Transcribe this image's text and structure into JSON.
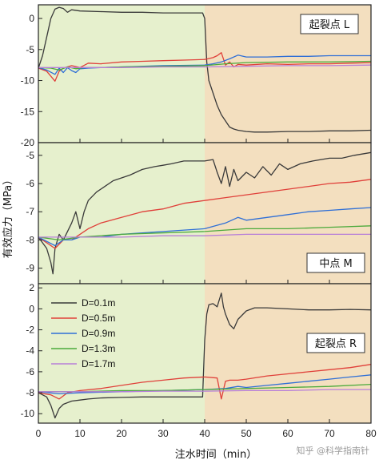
{
  "chart_data": {
    "type": "line",
    "xlabel": "注水时间（min）",
    "ylabel": "有效应力（MPa）",
    "xlim": [
      0,
      80
    ],
    "xticks": [
      0,
      10,
      20,
      30,
      40,
      50,
      60,
      70,
      80
    ],
    "shaded_regions": [
      {
        "x_range": [
          0,
          40
        ],
        "color": "#e6f0cd"
      },
      {
        "x_range": [
          40,
          80
        ],
        "color": "#f3dfbf"
      }
    ],
    "legend": {
      "placement": "top-left of bottom panel",
      "entries": [
        {
          "label": "D=0.1m",
          "color": "#3a3a3a"
        },
        {
          "label": "D=0.5m",
          "color": "#e0403a"
        },
        {
          "label": "D=0.9m",
          "color": "#2f6fd6"
        },
        {
          "label": "D=1.3m",
          "color": "#4caa3c"
        },
        {
          "label": "D=1.7m",
          "color": "#b77fd8"
        }
      ]
    },
    "panels": [
      {
        "label": "起裂点 L",
        "ylim": [
          -20,
          2.2
        ],
        "yticks": [
          0,
          -5,
          -10,
          -15,
          -20
        ],
        "series": [
          {
            "color": "#3a3a3a",
            "x": [
              0,
              1,
              2,
              3,
              4,
              5,
              6,
              7,
              8,
              10,
              15,
              20,
              25,
              30,
              35,
              39.5,
              40,
              40.5,
              41,
              42,
              43,
              44,
              45,
              46,
              47,
              48,
              50,
              52,
              55,
              60,
              65,
              70,
              75,
              80
            ],
            "y": [
              -8,
              -6,
              -3,
              0,
              1.5,
              1.8,
              1.6,
              1.0,
              1.4,
              1.2,
              1.1,
              1.0,
              1.0,
              0.9,
              0.9,
              0.9,
              0,
              -7,
              -10,
              -12,
              -14,
              -15.5,
              -16.5,
              -17.5,
              -17.8,
              -18,
              -18.2,
              -18.3,
              -18.3,
              -18.2,
              -18.2,
              -18.1,
              -18.1,
              -18.0
            ]
          },
          {
            "color": "#e0403a",
            "x": [
              0,
              2,
              3,
              4,
              5,
              6,
              8,
              10,
              12,
              15,
              20,
              25,
              30,
              35,
              40,
              42,
              43,
              44,
              45,
              46,
              47,
              48,
              50,
              55,
              60,
              65,
              70,
              75,
              80
            ],
            "y": [
              -8,
              -8.5,
              -9.3,
              -10.1,
              -8.5,
              -8.0,
              -7.6,
              -7.9,
              -7.2,
              -7.3,
              -7.0,
              -6.9,
              -6.8,
              -6.7,
              -6.6,
              -6.3,
              -6.0,
              -5.5,
              -7.5,
              -7.0,
              -7.8,
              -7.4,
              -7.5,
              -7.3,
              -7.4,
              -7.3,
              -7.3,
              -7.2,
              -7.1
            ]
          },
          {
            "color": "#2f6fd6",
            "x": [
              0,
              2,
              4,
              5,
              6,
              7,
              8,
              9,
              10,
              12,
              15,
              20,
              30,
              40,
              42,
              44,
              46,
              48,
              50,
              55,
              60,
              65,
              70,
              75,
              80
            ],
            "y": [
              -7.9,
              -8.3,
              -9.0,
              -8.0,
              -8.7,
              -7.9,
              -8.4,
              -8.7,
              -8.1,
              -8.0,
              -7.9,
              -7.8,
              -7.6,
              -7.5,
              -7.3,
              -7.0,
              -6.5,
              -5.9,
              -6.2,
              -6.2,
              -6.1,
              -6.1,
              -6.0,
              -6.0,
              -6.0
            ]
          },
          {
            "color": "#4caa3c",
            "x": [
              0,
              3,
              5,
              7,
              9,
              11,
              15,
              20,
              30,
              40,
              45,
              50,
              60,
              70,
              80
            ],
            "y": [
              -7.9,
              -8.0,
              -8.3,
              -7.8,
              -8.1,
              -7.9,
              -7.9,
              -7.8,
              -7.7,
              -7.6,
              -7.3,
              -7.1,
              -7.0,
              -7.0,
              -6.9
            ]
          },
          {
            "color": "#b77fd8",
            "x": [
              0,
              10,
              20,
              30,
              40,
              50,
              60,
              70,
              80
            ],
            "y": [
              -7.9,
              -7.9,
              -7.9,
              -7.8,
              -7.8,
              -7.7,
              -7.6,
              -7.6,
              -7.5
            ]
          }
        ]
      },
      {
        "label": "中点 M",
        "ylim": [
          -9.55,
          -4.55
        ],
        "yticks": [
          -5,
          -6,
          -7,
          -8,
          -9
        ],
        "series": [
          {
            "color": "#3a3a3a",
            "x": [
              0,
              2,
              3,
              3.5,
              4,
              5,
              6,
              7,
              8,
              9,
              10,
              11,
              12,
              14,
              16,
              18,
              20,
              22,
              25,
              28,
              30,
              32,
              35,
              38,
              40,
              42,
              43,
              44,
              45,
              46,
              47,
              48,
              50,
              52,
              54,
              56,
              58,
              60,
              63,
              66,
              70,
              73,
              76,
              80
            ],
            "y": [
              -7.9,
              -8.3,
              -8.8,
              -9.2,
              -8.3,
              -7.8,
              -8.0,
              -7.7,
              -7.4,
              -7.0,
              -7.6,
              -7.0,
              -6.6,
              -6.3,
              -6.1,
              -5.9,
              -5.8,
              -5.7,
              -5.5,
              -5.4,
              -5.35,
              -5.3,
              -5.2,
              -5.2,
              -5.2,
              -5.15,
              -5.6,
              -6.0,
              -5.4,
              -6.1,
              -5.5,
              -5.9,
              -5.6,
              -5.8,
              -5.4,
              -5.7,
              -5.3,
              -5.5,
              -5.3,
              -5.2,
              -5.1,
              -5.1,
              -5.0,
              -4.9
            ]
          },
          {
            "color": "#e0403a",
            "x": [
              0,
              4,
              6,
              8,
              10,
              12,
              15,
              20,
              25,
              30,
              35,
              40,
              45,
              50,
              55,
              60,
              65,
              70,
              75,
              80
            ],
            "y": [
              -7.9,
              -8.3,
              -8.0,
              -8.0,
              -7.8,
              -7.6,
              -7.4,
              -7.2,
              -7.0,
              -6.9,
              -6.7,
              -6.6,
              -6.5,
              -6.4,
              -6.3,
              -6.2,
              -6.1,
              -6.0,
              -5.95,
              -5.85
            ]
          },
          {
            "color": "#2f6fd6",
            "x": [
              0,
              4,
              6,
              8,
              10,
              15,
              20,
              30,
              40,
              45,
              48,
              50,
              55,
              60,
              65,
              70,
              75,
              80
            ],
            "y": [
              -7.9,
              -8.2,
              -8.0,
              -8.0,
              -7.9,
              -7.9,
              -7.8,
              -7.7,
              -7.6,
              -7.4,
              -7.2,
              -7.3,
              -7.2,
              -7.1,
              -7.0,
              -6.95,
              -6.9,
              -6.85
            ]
          },
          {
            "color": "#4caa3c",
            "x": [
              0,
              5,
              10,
              20,
              30,
              40,
              50,
              60,
              70,
              80
            ],
            "y": [
              -7.9,
              -8.0,
              -7.9,
              -7.8,
              -7.75,
              -7.7,
              -7.6,
              -7.6,
              -7.55,
              -7.5
            ]
          },
          {
            "color": "#b77fd8",
            "x": [
              0,
              10,
              20,
              30,
              40,
              50,
              60,
              70,
              80
            ],
            "y": [
              -7.9,
              -7.9,
              -7.9,
              -7.85,
              -7.85,
              -7.8,
              -7.8,
              -7.8,
              -7.8
            ]
          }
        ]
      },
      {
        "label": "起裂点 R",
        "ylim": [
          -10.9,
          2.4
        ],
        "yticks": [
          2,
          0,
          -2,
          -4,
          -6,
          -8,
          -10
        ],
        "series": [
          {
            "color": "#3a3a3a",
            "x": [
              0,
              2,
              3,
              4,
              5,
              6,
              8,
              10,
              12,
              15,
              20,
              25,
              30,
              35,
              39.5,
              40,
              40.5,
              41,
              42,
              43,
              44,
              44.5,
              45,
              46,
              47,
              48,
              50,
              52,
              55,
              60,
              65,
              70,
              75,
              80
            ],
            "y": [
              -8,
              -8.4,
              -9.2,
              -10.4,
              -9.5,
              -9.1,
              -8.8,
              -8.7,
              -8.6,
              -8.5,
              -8.45,
              -8.4,
              -8.4,
              -8.4,
              -8.4,
              -3,
              -0.5,
              0.4,
              0.5,
              0.2,
              1.5,
              0.2,
              -0.5,
              -1.5,
              -1.9,
              -1.0,
              -0.2,
              0.1,
              0.1,
              0.0,
              -0.1,
              -0.1,
              -0.05,
              -0.1
            ]
          },
          {
            "color": "#e0403a",
            "x": [
              0,
              3,
              5,
              7,
              10,
              15,
              20,
              25,
              30,
              35,
              40,
              43,
              44,
              45,
              46,
              48,
              50,
              55,
              60,
              65,
              70,
              75,
              80
            ],
            "y": [
              -8,
              -8.2,
              -8.6,
              -8.0,
              -7.8,
              -7.6,
              -7.3,
              -7.0,
              -6.8,
              -6.6,
              -6.5,
              -6.6,
              -8.6,
              -6.9,
              -6.8,
              -6.8,
              -6.7,
              -6.4,
              -6.2,
              -6.0,
              -5.8,
              -5.6,
              -5.3
            ]
          },
          {
            "color": "#2f6fd6",
            "x": [
              0,
              5,
              10,
              20,
              30,
              40,
              45,
              48,
              50,
              55,
              60,
              65,
              70,
              75,
              80
            ],
            "y": [
              -7.9,
              -8.1,
              -8.0,
              -7.9,
              -7.8,
              -7.7,
              -7.6,
              -7.4,
              -7.5,
              -7.3,
              -7.1,
              -6.9,
              -6.7,
              -6.5,
              -6.3
            ]
          },
          {
            "color": "#4caa3c",
            "x": [
              0,
              10,
              20,
              30,
              40,
              50,
              60,
              70,
              80
            ],
            "y": [
              -7.9,
              -7.9,
              -7.8,
              -7.8,
              -7.7,
              -7.6,
              -7.5,
              -7.4,
              -7.2
            ]
          },
          {
            "color": "#b77fd8",
            "x": [
              0,
              10,
              20,
              30,
              40,
              50,
              60,
              70,
              80
            ],
            "y": [
              -7.9,
              -7.9,
              -7.9,
              -7.85,
              -7.85,
              -7.8,
              -7.8,
              -7.7,
              -7.7
            ]
          }
        ]
      }
    ]
  },
  "watermark": "知乎 @科学指南针"
}
